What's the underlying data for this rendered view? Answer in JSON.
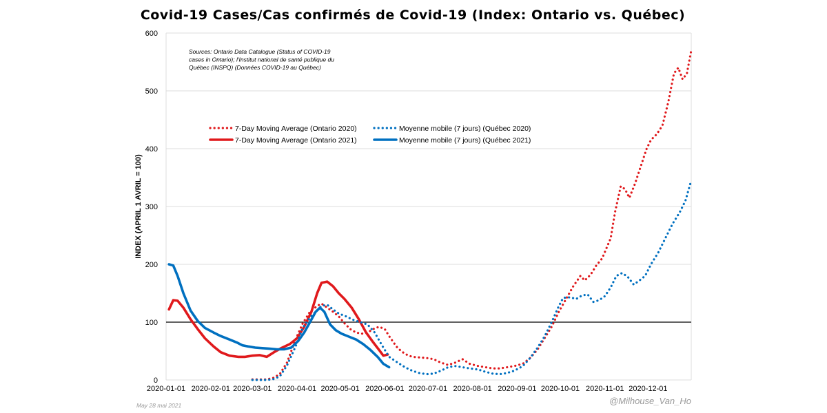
{
  "chart_data": {
    "type": "line",
    "title": "Covid-19 Cases/Cas confirmés de Covid-19 (Index: Ontario vs. Québec)",
    "ylabel": "INDEX (APRIL 1 AVRIL = 100)",
    "xlabel": "",
    "ylim": [
      0,
      600
    ],
    "y_ticks": [
      "0",
      "100",
      "200",
      "300",
      "400",
      "500",
      "600"
    ],
    "x_ticks": [
      "2020-01-01",
      "2020-02-01",
      "2020-03-01",
      "2020-04-01",
      "2020-05-01",
      "2020-06-01",
      "2020-07-01",
      "2020-08-01",
      "2020-09-01",
      "2020-10-01",
      "2020-11-01",
      "2020-12-01"
    ],
    "x_range": [
      "2020-01-01",
      "2020-12-31"
    ],
    "reference_line": 100,
    "grid": true,
    "legend_placement": "upper-left",
    "source_note": "Sources: Ontario Data Catalogue (Status of COVID-19 cases in Ontario); l'Institut national de santé publique du Québec (INSPQ) (Données COVID-19 au Québec)",
    "series": [
      {
        "name": "7-Day Moving Average (Ontario 2020)",
        "color": "#e0191c",
        "style": "dotted",
        "points": [
          [
            "2020-03-01",
            1
          ],
          [
            "2020-03-10",
            1
          ],
          [
            "2020-03-15",
            3
          ],
          [
            "2020-03-20",
            10
          ],
          [
            "2020-03-25",
            30
          ],
          [
            "2020-03-31",
            70
          ],
          [
            "2020-04-05",
            98
          ],
          [
            "2020-04-10",
            118
          ],
          [
            "2020-04-15",
            128
          ],
          [
            "2020-04-18",
            132
          ],
          [
            "2020-04-22",
            125
          ],
          [
            "2020-04-26",
            118
          ],
          [
            "2020-04-30",
            110
          ],
          [
            "2020-05-04",
            98
          ],
          [
            "2020-05-08",
            88
          ],
          [
            "2020-05-12",
            82
          ],
          [
            "2020-05-16",
            80
          ],
          [
            "2020-05-20",
            82
          ],
          [
            "2020-05-24",
            88
          ],
          [
            "2020-05-28",
            92
          ],
          [
            "2020-06-01",
            88
          ],
          [
            "2020-06-05",
            72
          ],
          [
            "2020-06-10",
            55
          ],
          [
            "2020-06-15",
            45
          ],
          [
            "2020-06-20",
            40
          ],
          [
            "2020-06-30",
            38
          ],
          [
            "2020-07-05",
            36
          ],
          [
            "2020-07-10",
            30
          ],
          [
            "2020-07-15",
            26
          ],
          [
            "2020-07-20",
            30
          ],
          [
            "2020-07-25",
            36
          ],
          [
            "2020-07-30",
            28
          ],
          [
            "2020-08-05",
            24
          ],
          [
            "2020-08-10",
            22
          ],
          [
            "2020-08-15",
            20
          ],
          [
            "2020-08-20",
            20
          ],
          [
            "2020-08-25",
            22
          ],
          [
            "2020-08-30",
            24
          ],
          [
            "2020-09-05",
            28
          ],
          [
            "2020-09-10",
            38
          ],
          [
            "2020-09-15",
            52
          ],
          [
            "2020-09-20",
            72
          ],
          [
            "2020-09-25",
            92
          ],
          [
            "2020-09-30",
            118
          ],
          [
            "2020-10-05",
            140
          ],
          [
            "2020-10-10",
            162
          ],
          [
            "2020-10-15",
            180
          ],
          [
            "2020-10-18",
            172
          ],
          [
            "2020-10-22",
            182
          ],
          [
            "2020-10-26",
            198
          ],
          [
            "2020-10-30",
            210
          ],
          [
            "2020-11-05",
            245
          ],
          [
            "2020-11-08",
            290
          ],
          [
            "2020-11-12",
            335
          ],
          [
            "2020-11-15",
            330
          ],
          [
            "2020-11-18",
            315
          ],
          [
            "2020-11-22",
            340
          ],
          [
            "2020-11-26",
            370
          ],
          [
            "2020-11-30",
            400
          ],
          [
            "2020-12-03",
            415
          ],
          [
            "2020-12-07",
            425
          ],
          [
            "2020-12-11",
            440
          ],
          [
            "2020-12-15",
            480
          ],
          [
            "2020-12-19",
            530
          ],
          [
            "2020-12-22",
            540
          ],
          [
            "2020-12-25",
            520
          ],
          [
            "2020-12-28",
            530
          ],
          [
            "2020-12-31",
            570
          ]
        ]
      },
      {
        "name": "7-Day Moving Average (Ontario 2021)",
        "color": "#e0191c",
        "style": "solid",
        "points": [
          [
            "2020-01-03",
            122
          ],
          [
            "2020-01-06",
            138
          ],
          [
            "2020-01-09",
            137
          ],
          [
            "2020-01-13",
            125
          ],
          [
            "2020-01-18",
            105
          ],
          [
            "2020-01-23",
            88
          ],
          [
            "2020-01-28",
            72
          ],
          [
            "2020-02-03",
            58
          ],
          [
            "2020-02-08",
            48
          ],
          [
            "2020-02-14",
            42
          ],
          [
            "2020-02-20",
            40
          ],
          [
            "2020-02-25",
            40
          ],
          [
            "2020-03-01",
            42
          ],
          [
            "2020-03-06",
            43
          ],
          [
            "2020-03-11",
            40
          ],
          [
            "2020-03-16",
            48
          ],
          [
            "2020-03-21",
            55
          ],
          [
            "2020-03-27",
            62
          ],
          [
            "2020-04-01",
            72
          ],
          [
            "2020-04-06",
            92
          ],
          [
            "2020-04-11",
            118
          ],
          [
            "2020-04-15",
            150
          ],
          [
            "2020-04-18",
            168
          ],
          [
            "2020-04-22",
            170
          ],
          [
            "2020-04-26",
            162
          ],
          [
            "2020-04-30",
            150
          ],
          [
            "2020-05-04",
            140
          ],
          [
            "2020-05-09",
            125
          ],
          [
            "2020-05-14",
            105
          ],
          [
            "2020-05-19",
            82
          ],
          [
            "2020-05-24",
            65
          ],
          [
            "2020-05-28",
            52
          ],
          [
            "2020-05-31",
            42
          ],
          [
            "2020-06-03",
            44
          ]
        ]
      },
      {
        "name": "Moyenne mobile (7 jours) (Québec 2020)",
        "color": "#0070c0",
        "style": "dotted",
        "points": [
          [
            "2020-03-01",
            0
          ],
          [
            "2020-03-10",
            0
          ],
          [
            "2020-03-15",
            1
          ],
          [
            "2020-03-20",
            6
          ],
          [
            "2020-03-25",
            25
          ],
          [
            "2020-03-31",
            58
          ],
          [
            "2020-04-05",
            90
          ],
          [
            "2020-04-10",
            108
          ],
          [
            "2020-04-14",
            118
          ],
          [
            "2020-04-18",
            128
          ],
          [
            "2020-04-22",
            130
          ],
          [
            "2020-04-26",
            122
          ],
          [
            "2020-04-30",
            115
          ],
          [
            "2020-05-05",
            110
          ],
          [
            "2020-05-10",
            104
          ],
          [
            "2020-05-15",
            100
          ],
          [
            "2020-05-20",
            96
          ],
          [
            "2020-05-25",
            82
          ],
          [
            "2020-05-30",
            60
          ],
          [
            "2020-06-04",
            40
          ],
          [
            "2020-06-10",
            30
          ],
          [
            "2020-06-15",
            22
          ],
          [
            "2020-06-20",
            16
          ],
          [
            "2020-06-25",
            12
          ],
          [
            "2020-06-30",
            10
          ],
          [
            "2020-07-05",
            11
          ],
          [
            "2020-07-10",
            16
          ],
          [
            "2020-07-15",
            22
          ],
          [
            "2020-07-20",
            24
          ],
          [
            "2020-07-25",
            22
          ],
          [
            "2020-07-30",
            20
          ],
          [
            "2020-08-05",
            18
          ],
          [
            "2020-08-10",
            14
          ],
          [
            "2020-08-15",
            11
          ],
          [
            "2020-08-20",
            10
          ],
          [
            "2020-08-25",
            12
          ],
          [
            "2020-08-30",
            16
          ],
          [
            "2020-09-05",
            24
          ],
          [
            "2020-09-10",
            38
          ],
          [
            "2020-09-15",
            55
          ],
          [
            "2020-09-20",
            75
          ],
          [
            "2020-09-25",
            100
          ],
          [
            "2020-09-30",
            128
          ],
          [
            "2020-10-03",
            142
          ],
          [
            "2020-10-08",
            143
          ],
          [
            "2020-10-12",
            140
          ],
          [
            "2020-10-16",
            146
          ],
          [
            "2020-10-20",
            148
          ],
          [
            "2020-10-24",
            135
          ],
          [
            "2020-10-28",
            138
          ],
          [
            "2020-11-01",
            145
          ],
          [
            "2020-11-05",
            160
          ],
          [
            "2020-11-09",
            180
          ],
          [
            "2020-11-13",
            185
          ],
          [
            "2020-11-17",
            178
          ],
          [
            "2020-11-21",
            165
          ],
          [
            "2020-11-25",
            172
          ],
          [
            "2020-11-29",
            180
          ],
          [
            "2020-12-03",
            200
          ],
          [
            "2020-12-08",
            220
          ],
          [
            "2020-12-13",
            245
          ],
          [
            "2020-12-18",
            270
          ],
          [
            "2020-12-23",
            290
          ],
          [
            "2020-12-27",
            310
          ],
          [
            "2020-12-31",
            345
          ]
        ]
      },
      {
        "name": "Moyenne mobile (7 jours) (Québec 2021)",
        "color": "#0070c0",
        "style": "solid",
        "points": [
          [
            "2020-01-03",
            200
          ],
          [
            "2020-01-06",
            198
          ],
          [
            "2020-01-09",
            180
          ],
          [
            "2020-01-13",
            150
          ],
          [
            "2020-01-18",
            120
          ],
          [
            "2020-01-23",
            102
          ],
          [
            "2020-01-28",
            90
          ],
          [
            "2020-02-03",
            82
          ],
          [
            "2020-02-08",
            76
          ],
          [
            "2020-02-14",
            70
          ],
          [
            "2020-02-19",
            65
          ],
          [
            "2020-02-23",
            60
          ],
          [
            "2020-02-27",
            58
          ],
          [
            "2020-03-03",
            56
          ],
          [
            "2020-03-08",
            55
          ],
          [
            "2020-03-13",
            54
          ],
          [
            "2020-03-18",
            53
          ],
          [
            "2020-03-23",
            53
          ],
          [
            "2020-03-28",
            56
          ],
          [
            "2020-04-02",
            68
          ],
          [
            "2020-04-06",
            82
          ],
          [
            "2020-04-10",
            100
          ],
          [
            "2020-04-14",
            118
          ],
          [
            "2020-04-17",
            125
          ],
          [
            "2020-04-20",
            118
          ],
          [
            "2020-04-24",
            96
          ],
          [
            "2020-04-28",
            86
          ],
          [
            "2020-05-02",
            80
          ],
          [
            "2020-05-07",
            75
          ],
          [
            "2020-05-12",
            70
          ],
          [
            "2020-05-17",
            62
          ],
          [
            "2020-05-22",
            52
          ],
          [
            "2020-05-27",
            40
          ],
          [
            "2020-05-31",
            28
          ],
          [
            "2020-06-04",
            22
          ]
        ]
      }
    ]
  },
  "footer": {
    "date": "May 28 mai 2021",
    "handle": "@Milhouse_Van_Ho"
  }
}
